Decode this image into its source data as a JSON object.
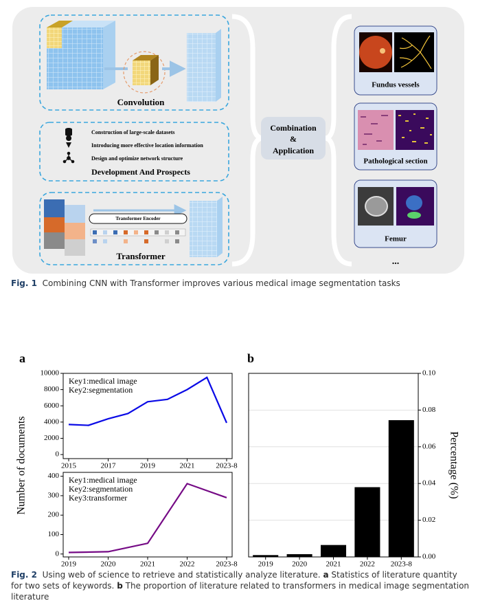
{
  "figure1": {
    "convolution": {
      "title": "Convolution"
    },
    "development": {
      "items": [
        "Construction of large-scale datasets",
        "Introducing more effective location information",
        "Design and optimize network structure"
      ],
      "title": "Development And Prospects"
    },
    "transformer": {
      "encoder": "Transformer Encoder",
      "title": "Transformer"
    },
    "center": {
      "lines": [
        "Combination",
        "&",
        "Application"
      ]
    },
    "applications": [
      "Fundus vessels",
      "Pathological section",
      "Femur"
    ],
    "more": "...",
    "caption": {
      "label": "Fig. 1",
      "text": "Combining CNN with Transformer improves various medical image segmentation tasks"
    }
  },
  "figure2": {
    "panels": [
      "a",
      "b"
    ],
    "caption": {
      "label": "Fig. 2",
      "segments": [
        "Using web of science to retrieve and statistically analyze literature.",
        "a",
        "Statistics of literature quantity for two sets of keywords.",
        "b",
        "The proportion of literature related to transformers in medical image segmentation literature"
      ]
    }
  },
  "chart_data": [
    {
      "type": "line",
      "ylabel": "Number of documents",
      "annotations": [
        "Key1:medical image",
        "Key2:segmentation"
      ],
      "categories": [
        "2015",
        null,
        "2017",
        null,
        "2019",
        null,
        "2021",
        null,
        "2023-8"
      ],
      "values": [
        3700,
        3600,
        4400,
        5050,
        6500,
        6800,
        8000,
        9500,
        3900
      ],
      "color": "#0a0ae6",
      "ylim": [
        -500,
        10000
      ],
      "yticks": [
        0,
        2000,
        4000,
        6000,
        8000,
        10000
      ],
      "grid": false
    },
    {
      "type": "line",
      "annotations": [
        "Key1:medical image",
        "Key2:segmentation",
        "Key3:transformer"
      ],
      "categories": [
        "2019",
        "2020",
        "2021",
        "2022",
        "2023-8"
      ],
      "values": [
        8,
        12,
        55,
        362,
        290
      ],
      "color": "#750a85",
      "ylim": [
        -15,
        420
      ],
      "yticks": [
        0,
        100,
        200,
        300,
        400
      ],
      "grid": false
    },
    {
      "type": "bar",
      "ylabel": "Percentage (%)",
      "y_axis_side": "right",
      "categories": [
        "2019",
        "2020",
        "2021",
        "2022",
        "2023-8"
      ],
      "values": [
        0.001,
        0.0015,
        0.0065,
        0.038,
        0.0745
      ],
      "color": "#000000",
      "ylim": [
        0,
        0.1
      ],
      "yticks": [
        {
          "value": 0,
          "label": "0.00"
        },
        0.02,
        0.04,
        0.06,
        0.08,
        {
          "value": 0.1,
          "label": "0.10"
        }
      ],
      "grid": true
    }
  ]
}
